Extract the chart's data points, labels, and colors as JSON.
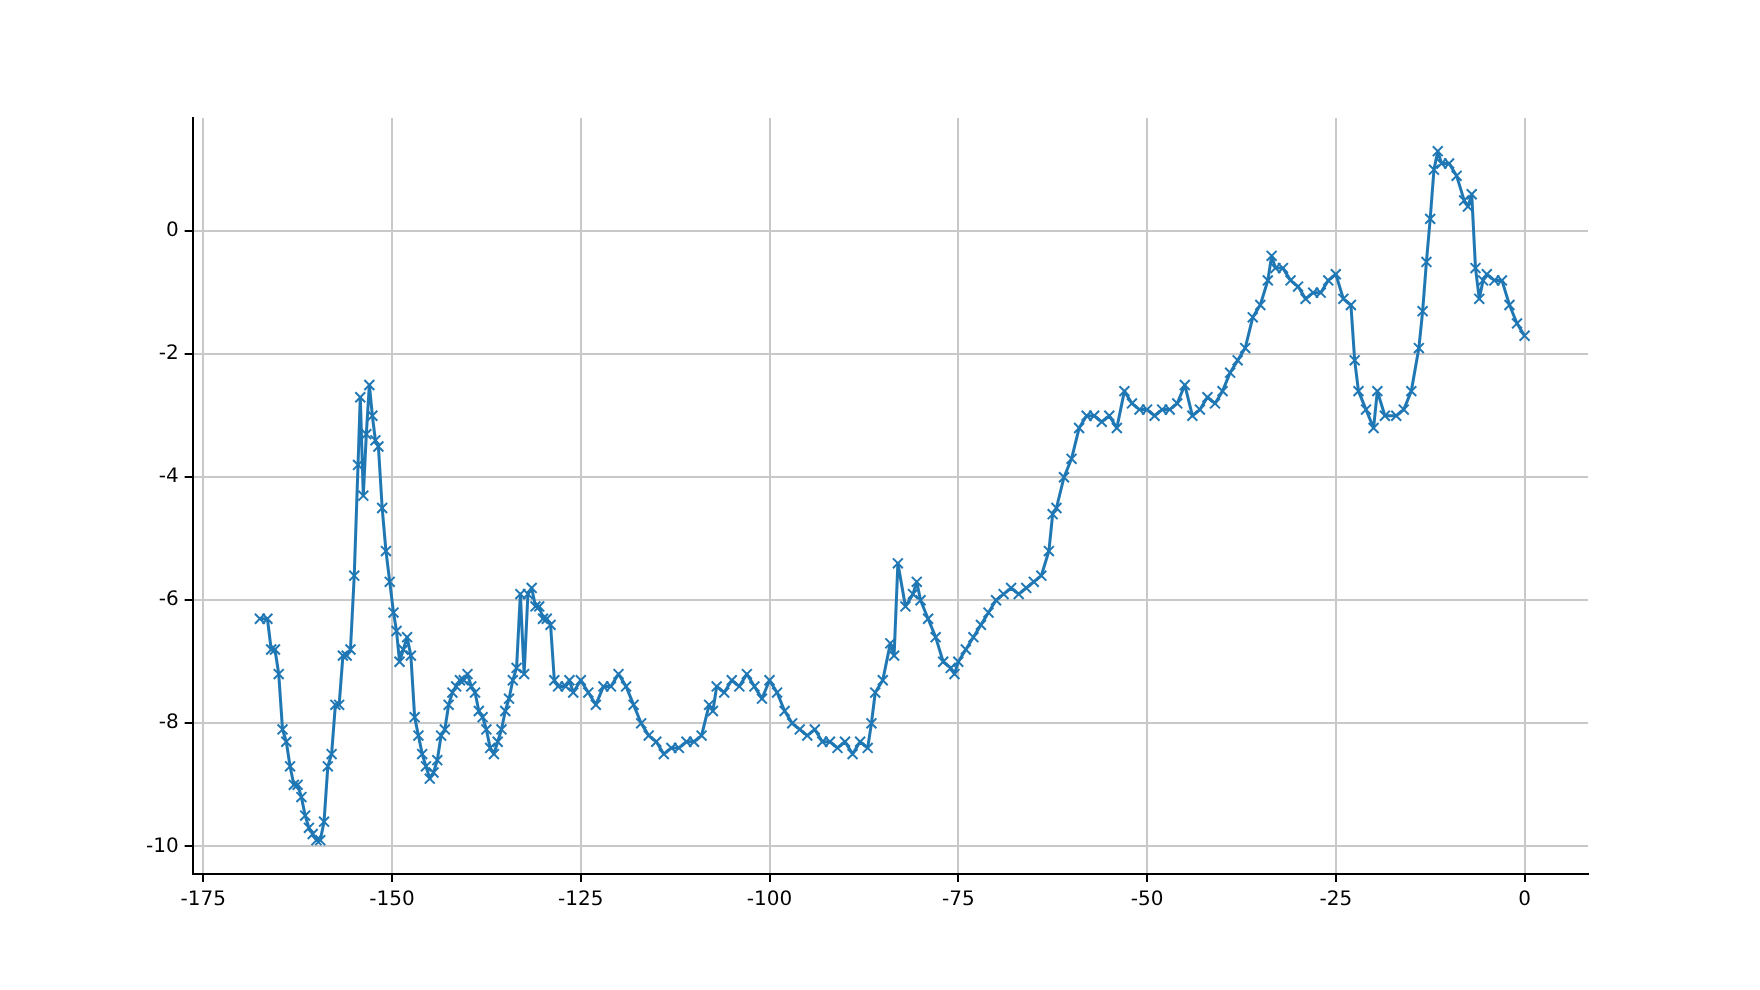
{
  "chart_data": {
    "type": "line",
    "xlim": [
      -176.4,
      8.4
    ],
    "ylim": [
      -10.45,
      1.84
    ],
    "xticks": [
      -175,
      -150,
      -125,
      -100,
      -75,
      -50,
      -25,
      0
    ],
    "yticks": [
      -10,
      -8,
      -6,
      -4,
      -2,
      0
    ],
    "grid": true,
    "marker": "cross",
    "line_style": "solid",
    "legend": false,
    "x": [
      -167.5,
      -166.5,
      -166,
      -165.5,
      -165,
      -164.5,
      -164,
      -163.5,
      -163,
      -162.5,
      -162,
      -161.5,
      -161,
      -160.5,
      -160,
      -159.5,
      -159,
      -158.5,
      -158,
      -157.5,
      -157,
      -156.5,
      -156,
      -155.5,
      -155,
      -154.5,
      -154.2,
      -153.8,
      -153.4,
      -153,
      -152.6,
      -152.2,
      -151.8,
      -151.3,
      -150.8,
      -150.3,
      -149.8,
      -149.4,
      -149,
      -148.5,
      -148,
      -147.5,
      -147,
      -146.5,
      -146,
      -145.5,
      -145,
      -144.5,
      -144,
      -143.5,
      -143,
      -142.5,
      -142,
      -141.5,
      -141,
      -140.5,
      -140,
      -139.5,
      -139,
      -138.5,
      -138,
      -137.5,
      -137,
      -136.5,
      -136,
      -135.5,
      -135,
      -134.5,
      -134,
      -133.5,
      -133,
      -132.5,
      -132,
      -131.5,
      -131,
      -130.5,
      -130,
      -129.5,
      -129,
      -128.5,
      -128,
      -127,
      -126.5,
      -126,
      -125,
      -124,
      -123,
      -122,
      -121,
      -120,
      -119,
      -118,
      -117,
      -116,
      -115,
      -114,
      -113,
      -112,
      -111,
      -110,
      -109,
      -108,
      -107.5,
      -107,
      -106,
      -105,
      -104,
      -103,
      -102,
      -101,
      -100,
      -99,
      -98,
      -97,
      -96,
      -95,
      -94,
      -93,
      -92,
      -91,
      -90,
      -89,
      -88,
      -87,
      -86.5,
      -86,
      -85,
      -84,
      -83.5,
      -83,
      -82,
      -81,
      -80.5,
      -80,
      -79,
      -78,
      -77,
      -76,
      -75.5,
      -75,
      -74,
      -73,
      -72,
      -71,
      -70,
      -69,
      -68,
      -67,
      -66,
      -65,
      -64,
      -63,
      -62.5,
      -62,
      -61,
      -60,
      -59,
      -58,
      -57,
      -56,
      -55,
      -54,
      -53,
      -52,
      -51,
      -50,
      -49,
      -48,
      -47,
      -46,
      -45,
      -44,
      -43,
      -42,
      -41,
      -40,
      -39,
      -38,
      -37,
      -36,
      -35,
      -34,
      -33.5,
      -33,
      -32,
      -31,
      -30,
      -29,
      -28,
      -27,
      -26,
      -25,
      -24,
      -23,
      -22.5,
      -22,
      -21,
      -20,
      -19.5,
      -18.5,
      -17,
      -16,
      -15,
      -14,
      -13.5,
      -13,
      -12.5,
      -12,
      -11.5,
      -11,
      -10,
      -9,
      -8,
      -7.5,
      -7,
      -6.5,
      -6,
      -5.5,
      -5,
      -4,
      -3,
      -2,
      -1,
      0
    ],
    "series": [
      {
        "color": "#1f77b4",
        "values": [
          -6.3,
          -6.3,
          -6.8,
          -6.8,
          -7.2,
          -8.1,
          -8.3,
          -8.7,
          -9.0,
          -9.0,
          -9.2,
          -9.5,
          -9.7,
          -9.8,
          -9.9,
          -9.9,
          -9.6,
          -8.7,
          -8.5,
          -7.7,
          -7.7,
          -6.9,
          -6.9,
          -6.8,
          -5.6,
          -3.8,
          -2.7,
          -4.3,
          -3.3,
          -2.5,
          -3.0,
          -3.4,
          -3.5,
          -4.5,
          -5.2,
          -5.7,
          -6.2,
          -6.5,
          -7.0,
          -6.8,
          -6.6,
          -6.9,
          -7.9,
          -8.2,
          -8.5,
          -8.7,
          -8.9,
          -8.8,
          -8.6,
          -8.2,
          -8.1,
          -7.7,
          -7.5,
          -7.4,
          -7.3,
          -7.3,
          -7.2,
          -7.4,
          -7.5,
          -7.8,
          -7.9,
          -8.1,
          -8.4,
          -8.5,
          -8.3,
          -8.1,
          -7.8,
          -7.6,
          -7.3,
          -7.1,
          -5.9,
          -7.2,
          -5.9,
          -5.8,
          -6.1,
          -6.1,
          -6.3,
          -6.3,
          -6.4,
          -7.3,
          -7.4,
          -7.4,
          -7.3,
          -7.5,
          -7.3,
          -7.5,
          -7.7,
          -7.4,
          -7.4,
          -7.2,
          -7.4,
          -7.7,
          -8.0,
          -8.2,
          -8.3,
          -8.5,
          -8.4,
          -8.4,
          -8.3,
          -8.3,
          -8.2,
          -7.7,
          -7.8,
          -7.4,
          -7.5,
          -7.3,
          -7.4,
          -7.2,
          -7.4,
          -7.6,
          -7.3,
          -7.5,
          -7.8,
          -8.0,
          -8.1,
          -8.2,
          -8.1,
          -8.3,
          -8.3,
          -8.4,
          -8.3,
          -8.5,
          -8.3,
          -8.4,
          -8.0,
          -7.5,
          -7.3,
          -6.7,
          -6.9,
          -5.4,
          -6.1,
          -5.9,
          -5.7,
          -6.0,
          -6.3,
          -6.6,
          -7.0,
          -7.1,
          -7.2,
          -7.0,
          -6.8,
          -6.6,
          -6.4,
          -6.2,
          -6.0,
          -5.9,
          -5.8,
          -5.9,
          -5.8,
          -5.7,
          -5.6,
          -5.2,
          -4.6,
          -4.5,
          -4.0,
          -3.7,
          -3.2,
          -3.0,
          -3.0,
          -3.1,
          -3.0,
          -3.2,
          -2.6,
          -2.8,
          -2.9,
          -2.9,
          -3.0,
          -2.9,
          -2.9,
          -2.8,
          -2.5,
          -3.0,
          -2.9,
          -2.7,
          -2.8,
          -2.6,
          -2.3,
          -2.1,
          -1.9,
          -1.4,
          -1.2,
          -0.8,
          -0.4,
          -0.6,
          -0.6,
          -0.8,
          -0.9,
          -1.1,
          -1.0,
          -1.0,
          -0.8,
          -0.7,
          -1.1,
          -1.2,
          -2.1,
          -2.6,
          -2.9,
          -3.2,
          -2.6,
          -3.0,
          -3.0,
          -2.9,
          -2.6,
          -1.9,
          -1.3,
          -0.5,
          0.2,
          1.0,
          1.3,
          1.1,
          1.1,
          0.9,
          0.5,
          0.4,
          0.6,
          -0.6,
          -1.1,
          -0.8,
          -0.7,
          -0.8,
          -0.8,
          -1.2,
          -1.5,
          -1.7
        ]
      }
    ]
  }
}
